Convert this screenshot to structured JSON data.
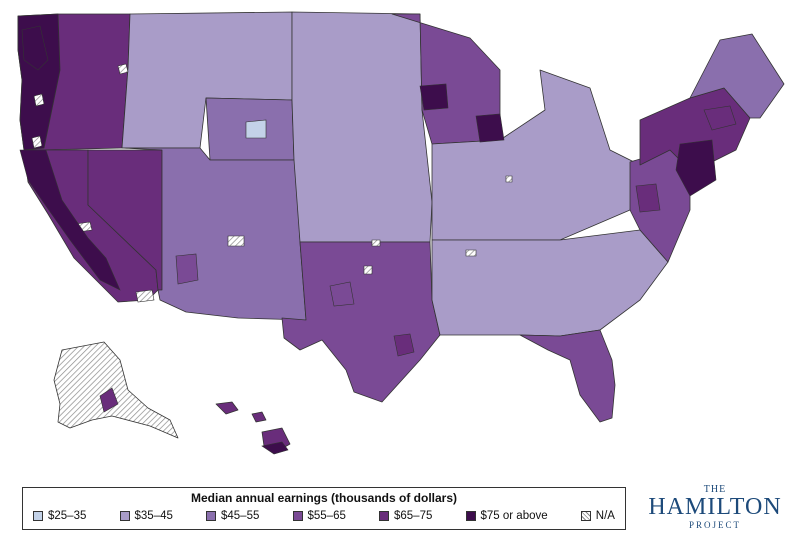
{
  "legend": {
    "title": "Median annual earnings (thousands of dollars)",
    "items": [
      {
        "label": "$25–35",
        "color": "#c3d2e8"
      },
      {
        "label": "$35–45",
        "color": "#a99cc8"
      },
      {
        "label": "$45–55",
        "color": "#8a6fad"
      },
      {
        "label": "$55–65",
        "color": "#7a4a95"
      },
      {
        "label": "$65–75",
        "color": "#692d7b"
      },
      {
        "label": "$75 or above",
        "color": "#3d0d4c"
      },
      {
        "label": "N/A",
        "color": "hatched"
      }
    ]
  },
  "logo": {
    "top": "THE",
    "main": "HAMILTON",
    "bottom": "PROJECT",
    "color": "#1d4a7a"
  },
  "map": {
    "border_color": "#333333",
    "regions": [
      {
        "name": "pacific-northwest",
        "category": 4
      },
      {
        "name": "pacific-coast-north",
        "category": 5
      },
      {
        "name": "california",
        "category": 4
      },
      {
        "name": "nevada",
        "category": 4
      },
      {
        "name": "northern-rockies",
        "category": 1
      },
      {
        "name": "wyoming",
        "category": 2
      },
      {
        "name": "southwest",
        "category": 2
      },
      {
        "name": "great-plains",
        "category": 1
      },
      {
        "name": "texas-oklahoma",
        "category": 3
      },
      {
        "name": "upper-midwest",
        "category": 3
      },
      {
        "name": "midwest",
        "category": 1
      },
      {
        "name": "southeast",
        "category": 1
      },
      {
        "name": "florida",
        "category": 3
      },
      {
        "name": "mid-atlantic",
        "category": 3
      },
      {
        "name": "northeast",
        "category": 4
      },
      {
        "name": "new-england",
        "category": 2
      },
      {
        "name": "alaska",
        "category": 6
      },
      {
        "name": "hawaii",
        "category": 4
      }
    ]
  }
}
